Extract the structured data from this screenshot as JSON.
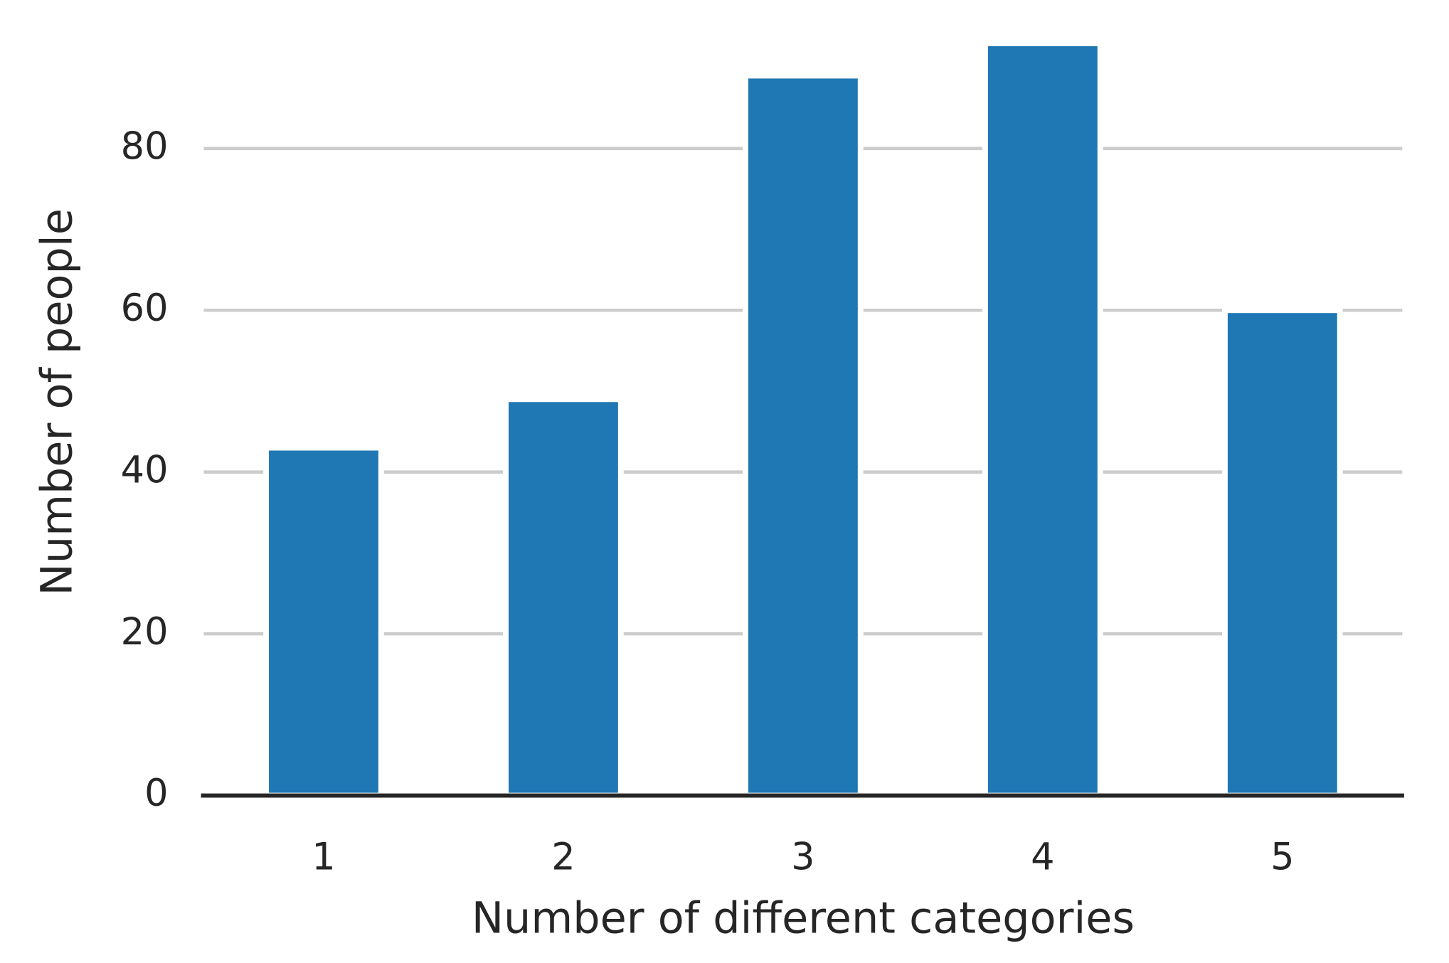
{
  "chart_data": {
    "type": "bar",
    "xlabel": "Number of different categories",
    "ylabel": "Number of people",
    "categories": [
      "1",
      "2",
      "3",
      "4",
      "5"
    ],
    "values": [
      43,
      49,
      89,
      93,
      60
    ],
    "color": "#1f77b4",
    "ylim": [
      0,
      97.65
    ],
    "yticks": [
      0,
      20,
      40,
      60,
      80
    ],
    "grid": true
  }
}
